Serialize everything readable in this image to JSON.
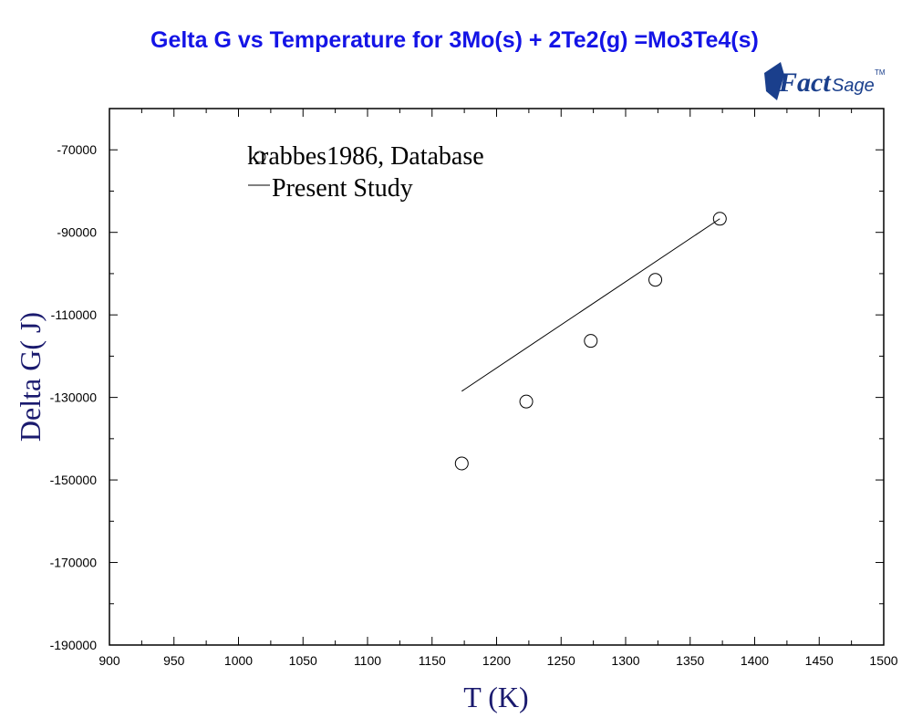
{
  "chart_data": {
    "type": "scatter",
    "title": "Gelta G vs Temperature for 3Mo(s) + 2Te2(g) =Mo3Te4(s)",
    "xlabel": "T (K)",
    "ylabel": "Delta G( J)",
    "xlim": [
      900,
      1500
    ],
    "ylim": [
      -190000,
      -60000
    ],
    "x_ticks": [
      900,
      950,
      1000,
      1050,
      1100,
      1150,
      1200,
      1250,
      1300,
      1350,
      1400,
      1450,
      1500
    ],
    "y_ticks": [
      -70000,
      -90000,
      -110000,
      -130000,
      -150000,
      -170000,
      -190000
    ],
    "grid": false,
    "legend_position": "top-left",
    "series": [
      {
        "name": "krabbes1986, Database",
        "marker": "open-circle",
        "x": [
          1173,
          1223,
          1273,
          1323,
          1373
        ],
        "y": [
          -146000,
          -131000,
          -116300,
          -101500,
          -86700
        ]
      },
      {
        "name": "Present Study",
        "marker": "line",
        "x": [
          1173,
          1373
        ],
        "y": [
          -128500,
          -86700
        ]
      }
    ]
  },
  "logo": {
    "brand": "FactSage",
    "trademark": "TM",
    "color": "#1a3f8c"
  },
  "colors": {
    "title": "#1414e6",
    "axis_label": "#1a1a6e",
    "data": "#000000"
  }
}
